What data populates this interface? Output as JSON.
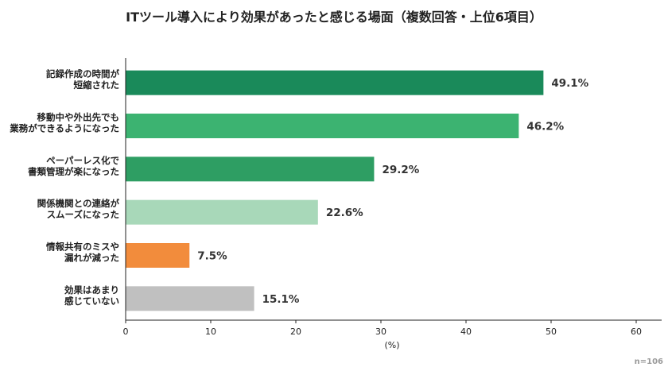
{
  "chart_data": {
    "type": "bar",
    "orientation": "horizontal",
    "title": "ITツール導入により効果があったと感じる場面（複数回答・上位6項目）",
    "categories": [
      [
        "記録作成の時間が",
        "短縮された"
      ],
      [
        "移動中や外出先でも",
        "業務ができるようになった"
      ],
      [
        "ペーパーレス化で",
        "書類管理が楽になった"
      ],
      [
        "関係機関との連絡が",
        "スムーズになった"
      ],
      [
        "情報共有のミスや",
        "漏れが減った"
      ],
      [
        "効果はあまり",
        "感じていない"
      ]
    ],
    "values": [
      49.1,
      46.2,
      29.2,
      22.6,
      7.5,
      15.1
    ],
    "value_labels": [
      "49.1%",
      "46.2%",
      "29.2%",
      "22.6%",
      "7.5%",
      "15.1%"
    ],
    "colors": [
      "#1a8a5a",
      "#3cb371",
      "#2e9e63",
      "#a8d8b9",
      "#f28c3c",
      "#c0c0c0"
    ],
    "xlabel": "(%)",
    "xlim": [
      0,
      60
    ],
    "xticks": [
      0,
      10,
      20,
      30,
      40,
      50,
      60
    ],
    "grid": false,
    "note": "n=106"
  }
}
